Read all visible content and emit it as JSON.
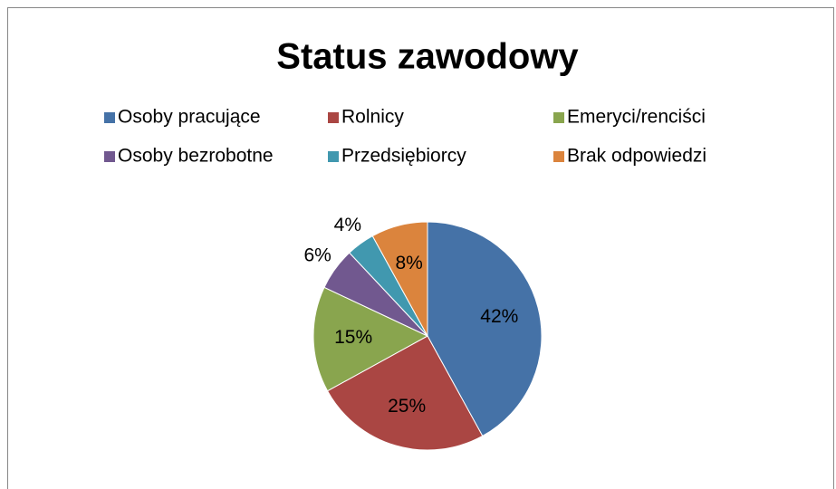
{
  "chart_data": {
    "type": "pie",
    "title": "Status zawodowy",
    "categories": [
      "Osoby pracujące",
      "Rolnicy",
      "Emeryci/renciści",
      "Osoby bezrobotne",
      "Przedsiębiorcy",
      "Brak odpowiedzi"
    ],
    "values": [
      42,
      25,
      15,
      6,
      4,
      8
    ],
    "value_labels": [
      "42%",
      "25%",
      "15%",
      "6%",
      "4%",
      "8%"
    ],
    "colors": [
      "#4572a7",
      "#aa4643",
      "#89a54e",
      "#71588f",
      "#4198af",
      "#db843d"
    ],
    "legend": "top"
  }
}
